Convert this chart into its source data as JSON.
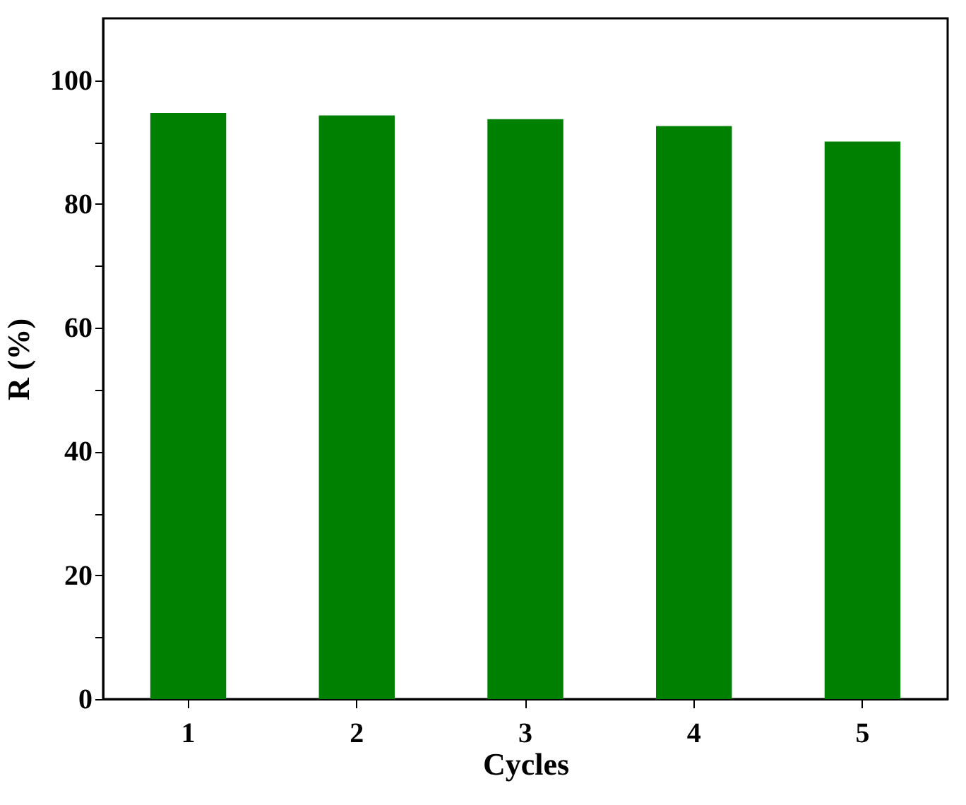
{
  "chart_data": {
    "type": "bar",
    "xlabel": "Cycles",
    "ylabel": "R (%)",
    "categories": [
      "1",
      "2",
      "3",
      "4",
      "5"
    ],
    "values": [
      94.7,
      94.3,
      93.7,
      92.6,
      90.1
    ],
    "color": "#008000",
    "ylim": [
      0,
      110
    ],
    "yticks": [
      0,
      {
        "value": 10,
        "label": null
      },
      20,
      {
        "value": 30,
        "label": null
      },
      40,
      {
        "value": 50,
        "label": null
      },
      60,
      {
        "value": 70,
        "label": null
      },
      80,
      {
        "value": 90,
        "label": null
      },
      100
    ],
    "grid": false
  }
}
